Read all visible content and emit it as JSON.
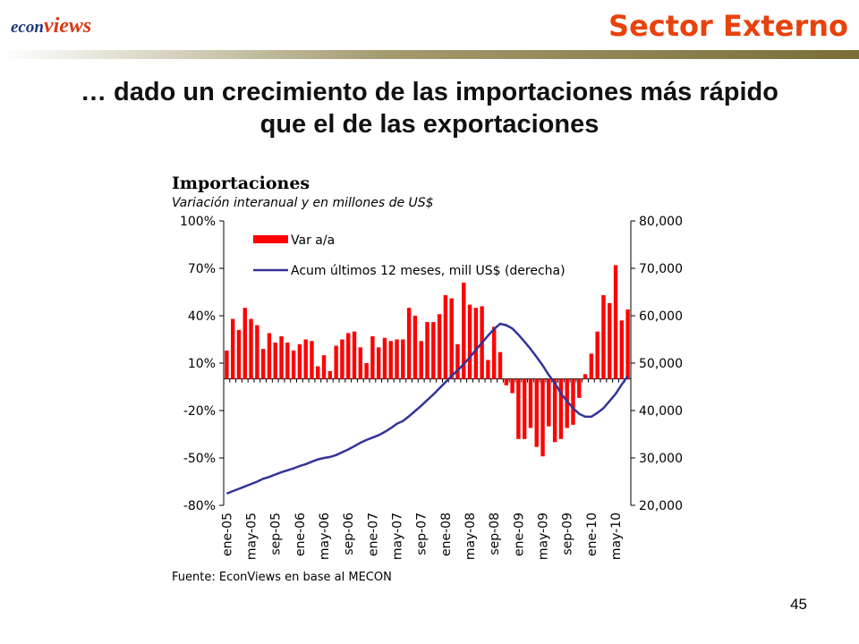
{
  "header": {
    "logo": [
      "econ",
      "views"
    ],
    "section": "Sector Externo"
  },
  "headline": [
    "… dado un crecimiento de las importaciones más rápido",
    "que el de las exportaciones"
  ],
  "page_number": "45",
  "chart_data": {
    "type": "bar_line",
    "title": "Importaciones",
    "subtitle": "Variación interanual y en millones de US$",
    "note": "Fuente: EconViews en base al MECON",
    "categories": [
      "ene-05",
      null,
      null,
      null,
      "may-05",
      null,
      null,
      null,
      "sep-05",
      null,
      null,
      null,
      "ene-06",
      null,
      null,
      null,
      "may-06",
      null,
      null,
      null,
      "sep-06",
      null,
      null,
      null,
      "ene-07",
      null,
      null,
      null,
      "may-07",
      null,
      null,
      null,
      "sep-07",
      null,
      null,
      null,
      "ene-08",
      null,
      null,
      null,
      "may-08",
      null,
      null,
      null,
      "sep-08",
      null,
      null,
      null,
      "ene-09",
      null,
      null,
      null,
      "may-09",
      null,
      null,
      null,
      "sep-09",
      null,
      null,
      null,
      "ene-10",
      null,
      null,
      null,
      "may-10",
      null,
      null
    ],
    "series": [
      {
        "name": "Var a/a",
        "color": "#ff0000",
        "kind": "bar",
        "axis": "y",
        "values": [
          18,
          38,
          31,
          45,
          38,
          34,
          19,
          29,
          23,
          27,
          23,
          18,
          22,
          25,
          24,
          8,
          15,
          5,
          21,
          25,
          29,
          30,
          20,
          10,
          27,
          20,
          26,
          24,
          25,
          25,
          45,
          40,
          24,
          36,
          36,
          41,
          53,
          51,
          22,
          61,
          47,
          45,
          46,
          12,
          33,
          17,
          -4,
          -9,
          -38,
          -38,
          -31,
          -43,
          -49,
          -30,
          -40,
          -38,
          -31,
          -29,
          -12,
          3,
          16,
          30,
          53,
          48,
          72,
          37,
          44
        ]
      },
      {
        "name": "Acum últimos 12 meses, mill US$ (derecha)",
        "color": "#333399",
        "kind": "line",
        "axis": "y2",
        "values": [
          22500,
          23000,
          23500,
          24000,
          24500,
          25000,
          25600,
          26000,
          26500,
          27000,
          27400,
          27800,
          28300,
          28700,
          29200,
          29700,
          30000,
          30200,
          30600,
          31200,
          31800,
          32500,
          33200,
          33800,
          34300,
          34800,
          35500,
          36300,
          37200,
          37800,
          38800,
          39900,
          41000,
          42200,
          43400,
          44700,
          46000,
          47300,
          48500,
          49800,
          51200,
          52800,
          54300,
          55800,
          57200,
          58300,
          58000,
          57300,
          56000,
          54500,
          53000,
          51300,
          49500,
          47500,
          45800,
          43600,
          42000,
          40500,
          39300,
          38700,
          38700,
          39500,
          40500,
          42000,
          43500,
          45500,
          47300
        ]
      }
    ],
    "ylim": [
      -80,
      100
    ],
    "yticks": [
      {
        "value": -80,
        "label": "-80%"
      },
      {
        "value": -50,
        "label": "-50%"
      },
      {
        "value": -20,
        "label": "-20%"
      },
      {
        "value": 10,
        "label": "10%"
      },
      {
        "value": 40,
        "label": "40%"
      },
      {
        "value": 70,
        "label": "70%"
      },
      {
        "value": 100,
        "label": "100%"
      }
    ],
    "y2lim": [
      20000,
      80000
    ],
    "y2ticks": [
      {
        "value": 20000,
        "label": "20,000"
      },
      {
        "value": 30000,
        "label": "30,000"
      },
      {
        "value": 40000,
        "label": "40,000"
      },
      {
        "value": 50000,
        "label": "50,000"
      },
      {
        "value": 60000,
        "label": "60,000"
      },
      {
        "value": 70000,
        "label": "70,000"
      },
      {
        "value": 80000,
        "label": "80,000"
      }
    ],
    "grid": false
  }
}
